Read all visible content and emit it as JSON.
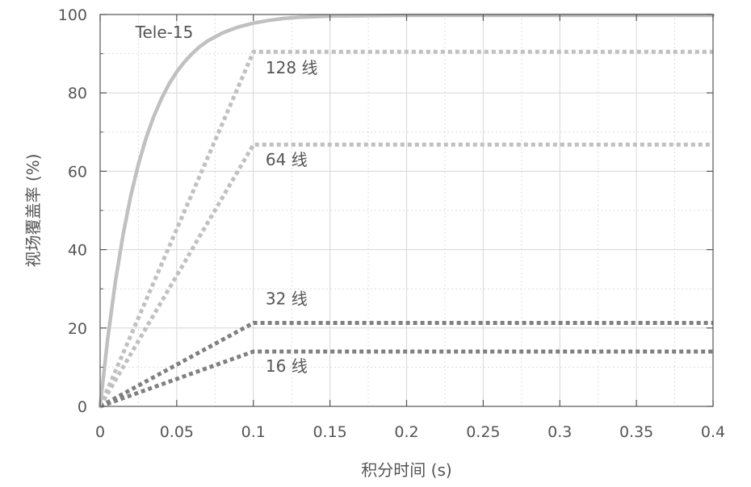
{
  "chart_data": {
    "type": "line",
    "title": "",
    "xlabel": "积分时间 (s)",
    "ylabel": "视场覆盖率 (%)",
    "xlim": [
      0,
      0.4
    ],
    "ylim": [
      0,
      100
    ],
    "grid": true,
    "xticks": [
      0,
      0.05,
      0.1,
      0.15,
      0.2,
      0.25,
      0.3,
      0.35,
      0.4
    ],
    "xtick_labels": [
      "0",
      "0.05",
      "0.1",
      "0.15",
      "0.2",
      "0.25",
      "0.3",
      "0.35",
      "0.4"
    ],
    "yticks": [
      0,
      20,
      40,
      60,
      80,
      100
    ],
    "ytick_labels": [
      "0",
      "20",
      "40",
      "60",
      "80",
      "100"
    ],
    "series": [
      {
        "name": "Tele-15",
        "style": "solid",
        "color": "#c0c0c0",
        "x": [
          0,
          0.005,
          0.01,
          0.015,
          0.02,
          0.025,
          0.03,
          0.035,
          0.04,
          0.045,
          0.05,
          0.055,
          0.06,
          0.065,
          0.07,
          0.075,
          0.08,
          0.085,
          0.09,
          0.1,
          0.11,
          0.12,
          0.13,
          0.15,
          0.2,
          0.25,
          0.3,
          0.35,
          0.4
        ],
        "y": [
          0,
          17.5,
          32,
          43.9,
          53.7,
          61.8,
          68.5,
          74,
          78.5,
          82.3,
          85.4,
          87.9,
          90,
          91.8,
          93.2,
          94.3,
          95.3,
          96.1,
          96.8,
          97.8,
          98.5,
          99,
          99.3,
          99.6,
          99.8,
          99.8,
          99.8,
          99.8,
          99.8
        ]
      },
      {
        "name": "128 线",
        "style": "dotted",
        "color": "#c0c0c0",
        "x": [
          0,
          0.1,
          0.4
        ],
        "y": [
          0,
          90.5,
          90.5
        ]
      },
      {
        "name": "64 线",
        "style": "dotted",
        "color": "#c0c0c0",
        "x": [
          0,
          0.1,
          0.4
        ],
        "y": [
          0,
          66.8,
          66.8
        ]
      },
      {
        "name": "32 线",
        "style": "dotted",
        "color": "#808080",
        "x": [
          0,
          0.1,
          0.4
        ],
        "y": [
          0,
          21.3,
          21.3
        ]
      },
      {
        "name": "16 线",
        "style": "dotted",
        "color": "#808080",
        "x": [
          0,
          0.1,
          0.4
        ],
        "y": [
          0,
          14,
          14
        ]
      }
    ],
    "labels": [
      {
        "text": "Tele-15",
        "x": 0.023,
        "y": 94
      },
      {
        "text": "128 线",
        "x": 0.108,
        "y": 85
      },
      {
        "text": "64 线",
        "x": 0.108,
        "y": 61.5
      },
      {
        "text": "32 线",
        "x": 0.108,
        "y": 26
      },
      {
        "text": "16 线",
        "x": 0.108,
        "y": 8.8
      }
    ]
  }
}
